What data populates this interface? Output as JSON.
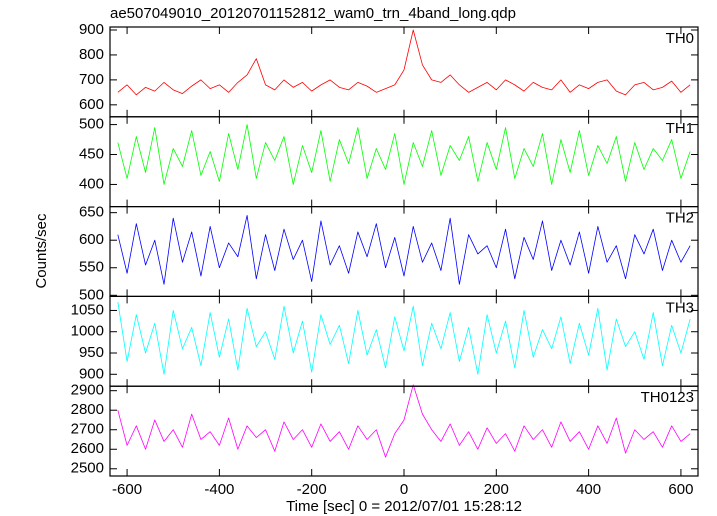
{
  "chart_data": [
    {
      "type": "line",
      "title": "ae507049010_20120701152812_wam0_trn_4band_long.qdp",
      "x": [
        -620,
        -600,
        -580,
        -560,
        -540,
        -520,
        -500,
        -480,
        -460,
        -440,
        -420,
        -400,
        -380,
        -360,
        -340,
        -320,
        -300,
        -280,
        -260,
        -240,
        -220,
        -200,
        -180,
        -160,
        -140,
        -120,
        -100,
        -80,
        -60,
        -40,
        -20,
        0,
        20,
        40,
        60,
        80,
        100,
        120,
        140,
        160,
        180,
        200,
        220,
        240,
        260,
        280,
        300,
        320,
        340,
        360,
        380,
        400,
        420,
        440,
        460,
        480,
        500,
        520,
        540,
        560,
        580,
        600,
        620
      ],
      "series": [
        {
          "name": "TH0",
          "color": "#ff0000",
          "values": [
            650,
            680,
            640,
            670,
            655,
            690,
            660,
            645,
            675,
            700,
            665,
            680,
            650,
            690,
            720,
            785,
            680,
            660,
            700,
            670,
            690,
            655,
            680,
            700,
            670,
            660,
            690,
            675,
            650,
            665,
            680,
            740,
            900,
            760,
            700,
            690,
            720,
            680,
            650,
            670,
            690,
            660,
            700,
            680,
            655,
            690,
            670,
            660,
            700,
            650,
            680,
            665,
            690,
            700,
            655,
            640,
            680,
            690,
            660,
            670,
            695,
            650,
            680
          ]
        }
      ],
      "xlim": [
        -637,
        637
      ],
      "xticks": [
        -600,
        -400,
        -200,
        0,
        200,
        400,
        600
      ],
      "ylim": [
        552,
        912
      ],
      "yticks": [
        600,
        700,
        800,
        900
      ]
    },
    {
      "type": "line",
      "x": [
        -620,
        -600,
        -580,
        -560,
        -540,
        -520,
        -500,
        -480,
        -460,
        -440,
        -420,
        -400,
        -380,
        -360,
        -340,
        -320,
        -300,
        -280,
        -260,
        -240,
        -220,
        -200,
        -180,
        -160,
        -140,
        -120,
        -100,
        -80,
        -60,
        -40,
        -20,
        0,
        20,
        40,
        60,
        80,
        100,
        120,
        140,
        160,
        180,
        200,
        220,
        240,
        260,
        280,
        300,
        320,
        340,
        360,
        380,
        400,
        420,
        440,
        460,
        480,
        500,
        520,
        540,
        560,
        580,
        600,
        620
      ],
      "series": [
        {
          "name": "TH1",
          "color": "#00ff00",
          "values": [
            470,
            410,
            480,
            420,
            495,
            400,
            460,
            430,
            490,
            415,
            455,
            405,
            485,
            425,
            500,
            410,
            470,
            440,
            480,
            400,
            465,
            420,
            490,
            405,
            475,
            435,
            495,
            410,
            460,
            425,
            485,
            400,
            470,
            430,
            490,
            415,
            465,
            440,
            480,
            405,
            470,
            425,
            495,
            410,
            460,
            430,
            485,
            400,
            475,
            420,
            490,
            415,
            465,
            435,
            480,
            405,
            470,
            425,
            460,
            440,
            475,
            410,
            455
          ]
        }
      ],
      "xlim": [
        -637,
        637
      ],
      "xticks": [
        -600,
        -400,
        -200,
        0,
        200,
        400,
        600
      ],
      "ylim": [
        363,
        513
      ],
      "yticks": [
        400,
        450,
        500
      ]
    },
    {
      "type": "line",
      "ylabel": "Counts/sec",
      "x": [
        -620,
        -600,
        -580,
        -560,
        -540,
        -520,
        -500,
        -480,
        -460,
        -440,
        -420,
        -400,
        -380,
        -360,
        -340,
        -320,
        -300,
        -280,
        -260,
        -240,
        -220,
        -200,
        -180,
        -160,
        -140,
        -120,
        -100,
        -80,
        -60,
        -40,
        -20,
        0,
        20,
        40,
        60,
        80,
        100,
        120,
        140,
        160,
        180,
        200,
        220,
        240,
        260,
        280,
        300,
        320,
        340,
        360,
        380,
        400,
        420,
        440,
        460,
        480,
        500,
        520,
        540,
        560,
        580,
        600,
        620
      ],
      "series": [
        {
          "name": "TH2",
          "color": "#0000ff",
          "values": [
            610,
            540,
            630,
            555,
            600,
            520,
            640,
            560,
            615,
            535,
            625,
            550,
            595,
            570,
            645,
            530,
            610,
            545,
            620,
            565,
            600,
            525,
            635,
            555,
            590,
            540,
            615,
            570,
            630,
            550,
            605,
            535,
            625,
            560,
            595,
            545,
            640,
            520,
            610,
            575,
            590,
            550,
            620,
            530,
            605,
            565,
            635,
            545,
            600,
            555,
            615,
            540,
            625,
            560,
            590,
            530,
            610,
            575,
            620,
            545,
            600,
            560,
            590
          ]
        }
      ],
      "xlim": [
        -637,
        637
      ],
      "xticks": [
        -600,
        -400,
        -200,
        0,
        200,
        400,
        600
      ],
      "ylim": [
        498,
        661
      ],
      "yticks": [
        500,
        550,
        600,
        650
      ]
    },
    {
      "type": "line",
      "x": [
        -620,
        -600,
        -580,
        -560,
        -540,
        -520,
        -500,
        -480,
        -460,
        -440,
        -420,
        -400,
        -380,
        -360,
        -340,
        -320,
        -300,
        -280,
        -260,
        -240,
        -220,
        -200,
        -180,
        -160,
        -140,
        -120,
        -100,
        -80,
        -60,
        -40,
        -20,
        0,
        20,
        40,
        60,
        80,
        100,
        120,
        140,
        160,
        180,
        200,
        220,
        240,
        260,
        280,
        300,
        320,
        340,
        360,
        380,
        400,
        420,
        440,
        460,
        480,
        500,
        520,
        540,
        560,
        580,
        600,
        620
      ],
      "series": [
        {
          "name": "TH3",
          "color": "#00ffff",
          "values": [
            1070,
            930,
            1040,
            950,
            1020,
            900,
            1050,
            960,
            1010,
            920,
            1045,
            940,
            1030,
            910,
            1055,
            965,
            1000,
            935,
            1060,
            950,
            1025,
            905,
            1040,
            970,
            1015,
            925,
            1050,
            945,
            1005,
            915,
            1035,
            955,
            1060,
            920,
            1020,
            960,
            1045,
            930,
            1010,
            900,
            1040,
            950,
            1025,
            915,
            1050,
            940,
            1005,
            960,
            1035,
            925,
            1020,
            945,
            1055,
            910,
            1030,
            965,
            1000,
            935,
            1045,
            920,
            1015,
            950,
            1030
          ]
        }
      ],
      "xlim": [
        -637,
        637
      ],
      "xticks": [
        -600,
        -400,
        -200,
        0,
        200,
        400,
        600
      ],
      "ylim": [
        872,
        1083
      ],
      "yticks": [
        900,
        950,
        1000,
        1050
      ]
    },
    {
      "type": "line",
      "xlabel": "Time [sec] 0 = 2012/07/01 15:28:12",
      "x": [
        -620,
        -600,
        -580,
        -560,
        -540,
        -520,
        -500,
        -480,
        -460,
        -440,
        -420,
        -400,
        -380,
        -360,
        -340,
        -320,
        -300,
        -280,
        -260,
        -240,
        -220,
        -200,
        -180,
        -160,
        -140,
        -120,
        -100,
        -80,
        -60,
        -40,
        -20,
        0,
        20,
        40,
        60,
        80,
        100,
        120,
        140,
        160,
        180,
        200,
        220,
        240,
        260,
        280,
        300,
        320,
        340,
        360,
        380,
        400,
        420,
        440,
        460,
        480,
        500,
        520,
        540,
        560,
        580,
        600,
        620
      ],
      "series": [
        {
          "name": "TH0123",
          "color": "#ff00ff",
          "values": [
            2800,
            2620,
            2720,
            2600,
            2750,
            2640,
            2700,
            2610,
            2780,
            2650,
            2690,
            2620,
            2760,
            2600,
            2720,
            2660,
            2700,
            2590,
            2740,
            2650,
            2700,
            2610,
            2730,
            2640,
            2690,
            2600,
            2720,
            2650,
            2700,
            2560,
            2680,
            2750,
            2930,
            2780,
            2700,
            2640,
            2730,
            2620,
            2690,
            2600,
            2710,
            2630,
            2680,
            2590,
            2720,
            2650,
            2700,
            2610,
            2740,
            2640,
            2690,
            2600,
            2720,
            2630,
            2760,
            2580,
            2700,
            2650,
            2690,
            2610,
            2720,
            2640,
            2680
          ]
        }
      ],
      "xlim": [
        -637,
        637
      ],
      "xticks": [
        -600,
        -400,
        -200,
        0,
        200,
        400,
        600
      ],
      "ylim": [
        2463,
        2923
      ],
      "yticks": [
        2500,
        2600,
        2700,
        2800,
        2900
      ]
    }
  ]
}
